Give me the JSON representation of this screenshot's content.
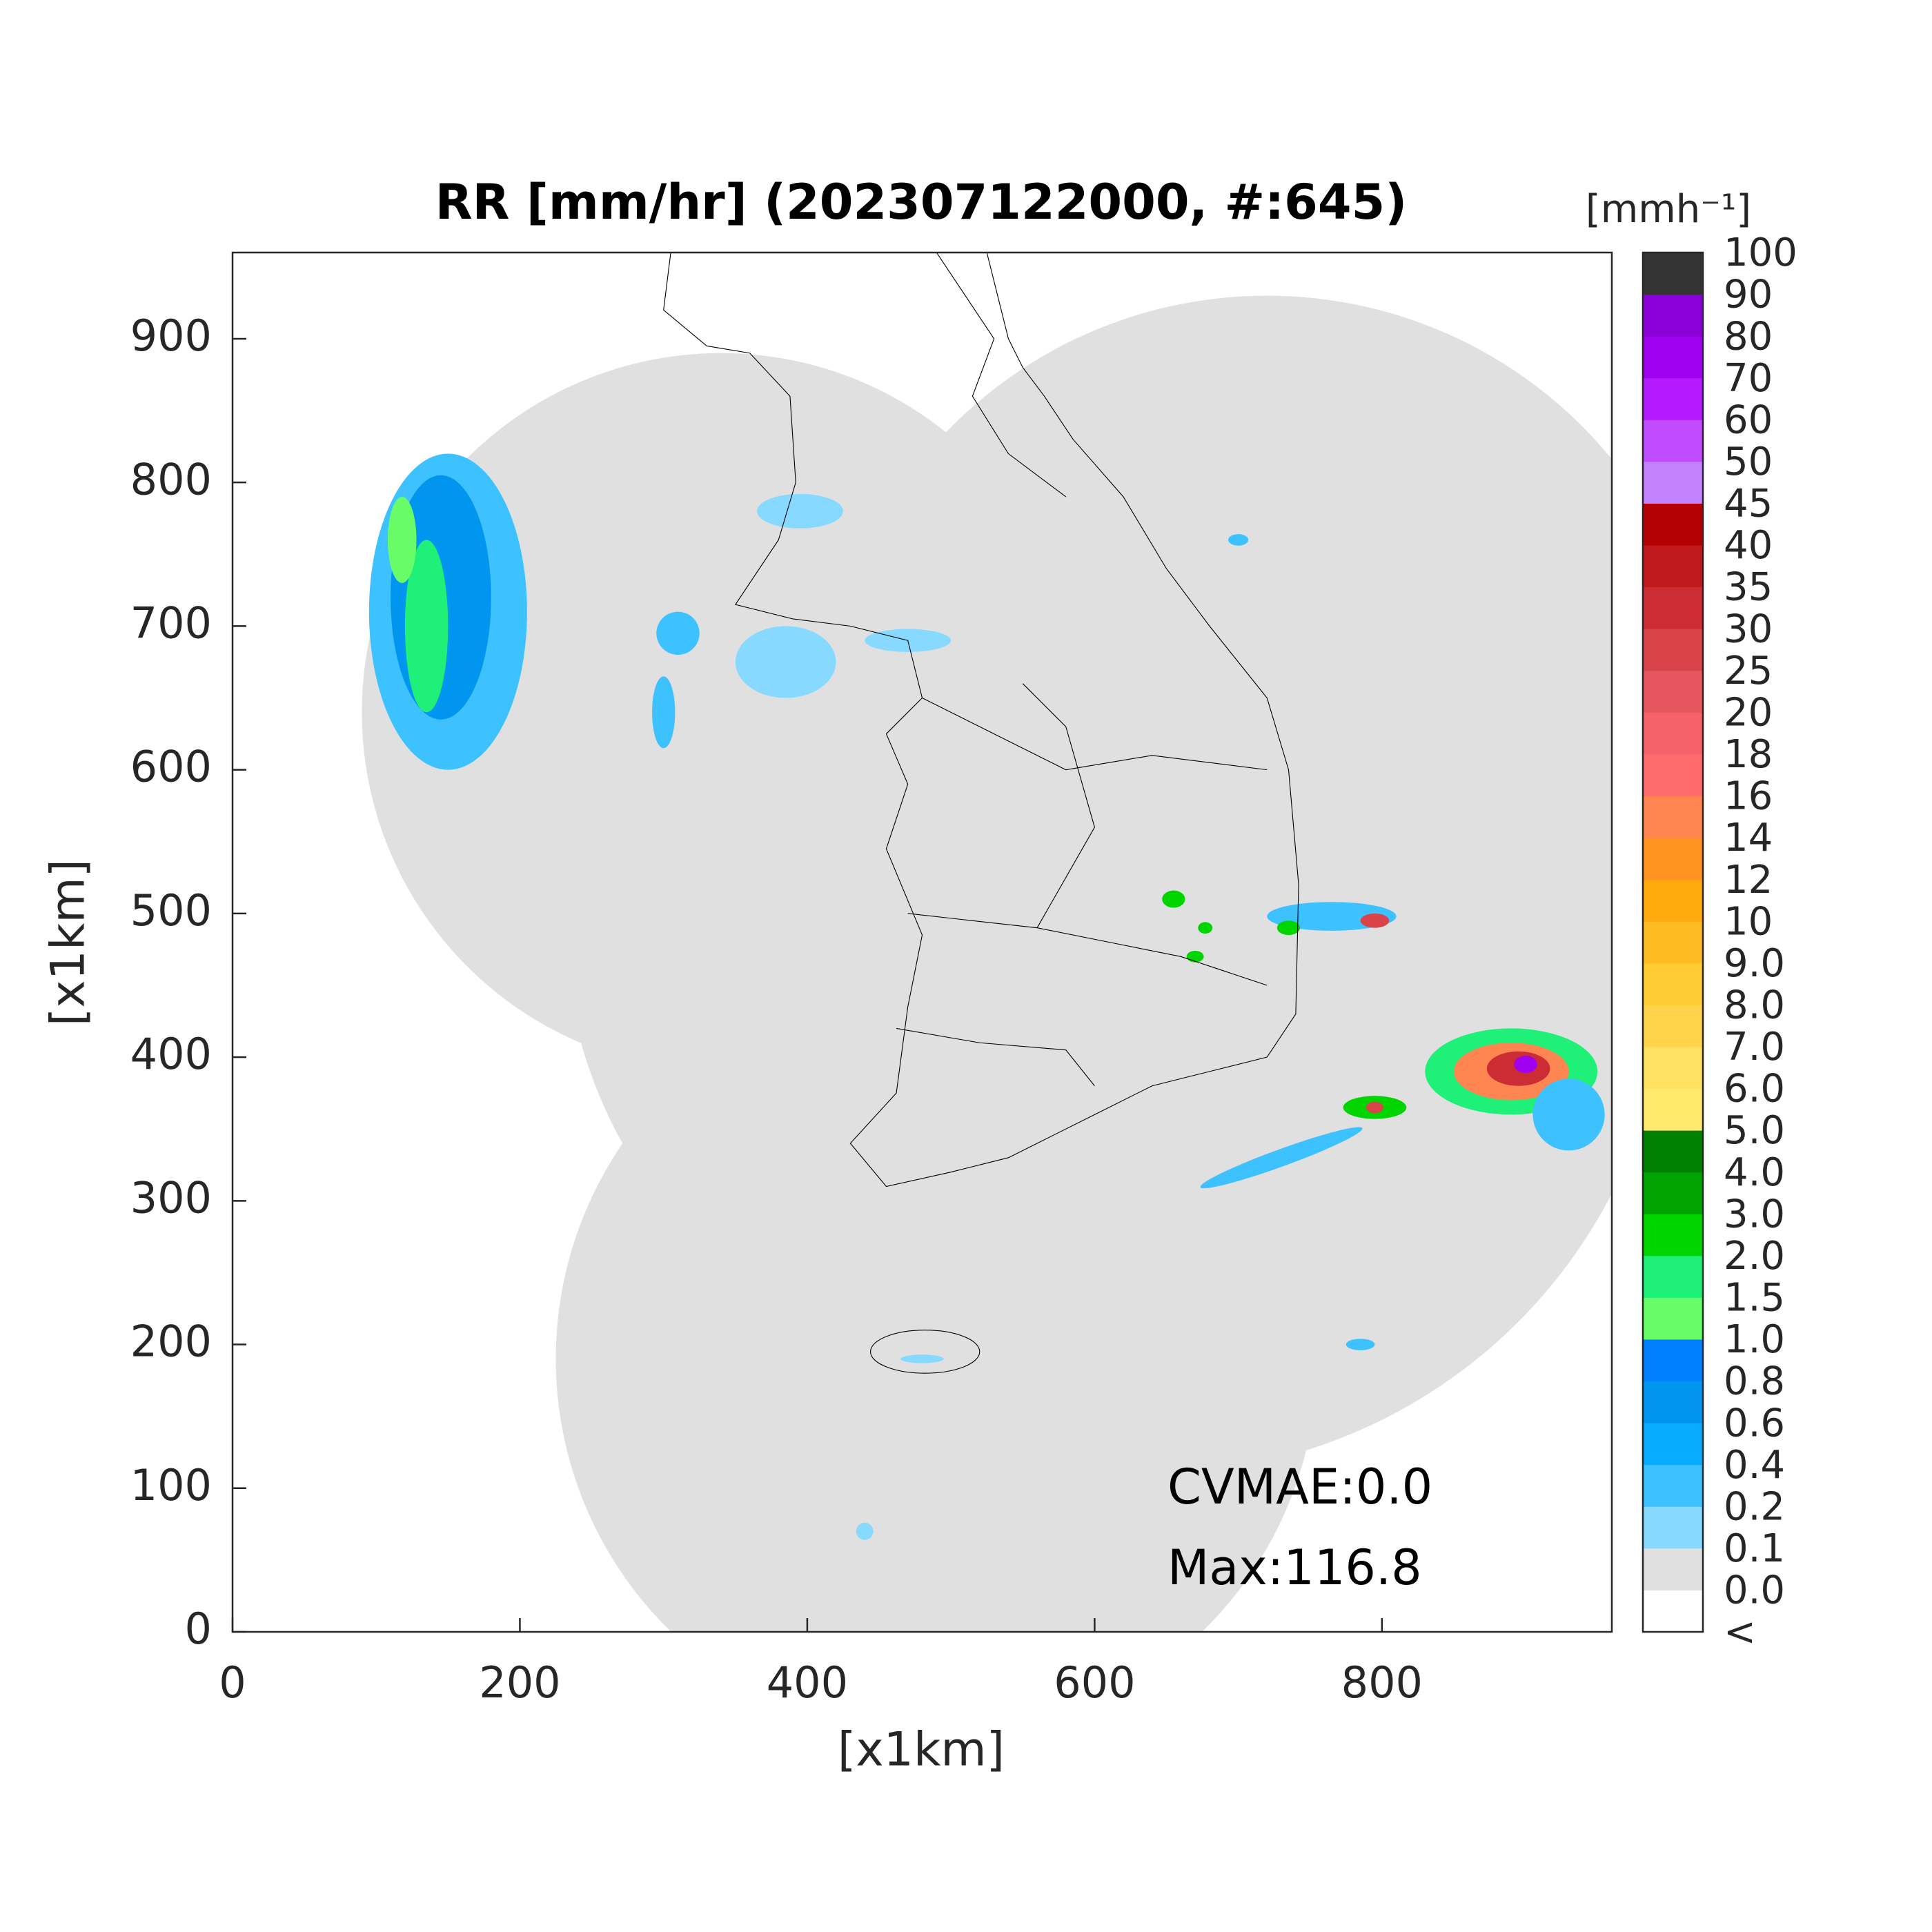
{
  "chart_data": {
    "type": "map",
    "title": "RR [mm/hr] (202307122000, #:645)",
    "xlabel": "[x1km]",
    "ylabel": "[x1km]",
    "xlim": [
      0,
      960
    ],
    "ylim": [
      0,
      960
    ],
    "xticks": [
      0,
      200,
      400,
      600,
      800
    ],
    "yticks": [
      0,
      100,
      200,
      300,
      400,
      500,
      600,
      700,
      800,
      900
    ],
    "annotations": [
      "CVMAE:0.0",
      "Max:116.8"
    ],
    "colorbar": {
      "title": "[mmh⁻¹]",
      "labels": [
        "<",
        "0.0",
        "0.1",
        "0.2",
        "0.4",
        "0.6",
        "0.8",
        "1.0",
        "1.5",
        "2.0",
        "3.0",
        "4.0",
        "5.0",
        "6.0",
        "7.0",
        "8.0",
        "9.0",
        "10",
        "12",
        "14",
        "16",
        "18",
        "20",
        "25",
        "30",
        "35",
        "40",
        "45",
        "50",
        "60",
        "70",
        "80",
        "90",
        "100"
      ],
      "colors": [
        "#ffffff",
        "#e0e0e0",
        "#87d9ff",
        "#3ec1ff",
        "#07abff",
        "#0096f0",
        "#0080ff",
        "#69fc69",
        "#1ef078",
        "#00d500",
        "#00a400",
        "#008000",
        "#ffea6e",
        "#ffe060",
        "#ffd34a",
        "#ffcc33",
        "#ffbb22",
        "#ffaa0e",
        "#ff9420",
        "#ff8650",
        "#ff6c6c",
        "#f5626a",
        "#e5565e",
        "#d9434a",
        "#cc2c33",
        "#c01a1f",
        "#b40000",
        "#c383ff",
        "#c04bff",
        "#b31aff",
        "#a000f0",
        "#8c00d8",
        "#333333"
      ]
    }
  }
}
